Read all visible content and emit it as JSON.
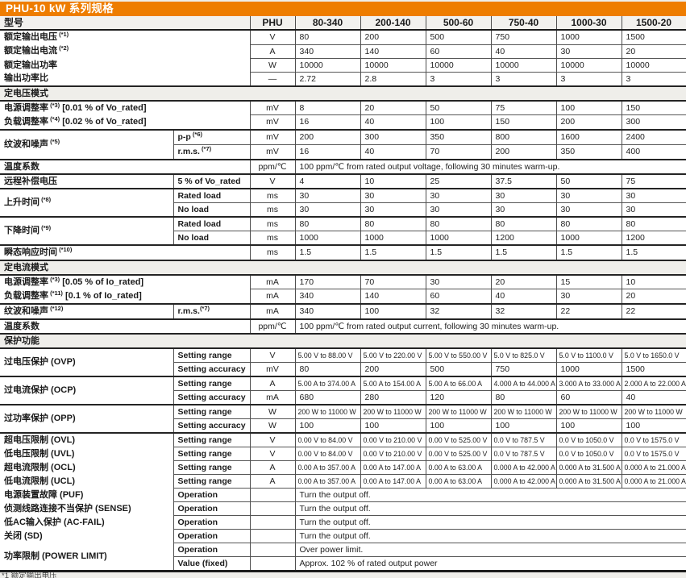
{
  "title": "PHU-10 kW 系列规格",
  "accent_color": "#ee7d00",
  "header": {
    "model_label": "型号",
    "series": "PHU",
    "models": [
      "80-340",
      "200-140",
      "500-60",
      "750-40",
      "1000-30",
      "1500-20"
    ]
  },
  "footnote_fragment": "*1 额定输出电压",
  "rows": [
    {
      "kind": "data",
      "label": "额定输出电压",
      "note": "(*1)",
      "colspan": 2,
      "unit": "V",
      "values": [
        "80",
        "200",
        "500",
        "750",
        "1000",
        "1500"
      ],
      "group": false
    },
    {
      "kind": "data",
      "label": "额定输出电流",
      "note": "(*2)",
      "colspan": 2,
      "unit": "A",
      "values": [
        "340",
        "140",
        "60",
        "40",
        "30",
        "20"
      ],
      "group": false
    },
    {
      "kind": "data",
      "label": "额定输出功率",
      "colspan": 2,
      "unit": "W",
      "values": [
        "10000",
        "10000",
        "10000",
        "10000",
        "10000",
        "10000"
      ],
      "group": false
    },
    {
      "kind": "data",
      "label": "输出功率比",
      "colspan": 2,
      "unit": "—",
      "values": [
        "2.72",
        "2.8",
        "3",
        "3",
        "3",
        "3"
      ],
      "group": false
    },
    {
      "kind": "section",
      "label": "定电压模式"
    },
    {
      "kind": "data",
      "label": "电源调整率",
      "note": "(*3)",
      "suffix": " [0.01 % of Vo_rated]",
      "colspan": 2,
      "unit": "mV",
      "values": [
        "8",
        "20",
        "50",
        "75",
        "100",
        "150"
      ],
      "group": false
    },
    {
      "kind": "data",
      "label": "负载调整率",
      "note": "(*4)",
      "suffix": " [0.02 % of Vo_rated]",
      "colspan": 2,
      "unit": "mV",
      "values": [
        "16",
        "40",
        "100",
        "150",
        "200",
        "300"
      ],
      "group": false
    },
    {
      "kind": "data",
      "label": "纹波和噪声",
      "note": "(*5)",
      "rowspan": 2,
      "sub": "p-p",
      "subNote": " (*6)",
      "unit": "mV",
      "values": [
        "200",
        "300",
        "350",
        "800",
        "1600",
        "2400"
      ],
      "group": true
    },
    {
      "kind": "data",
      "label": null,
      "sub": "r.m.s.",
      "subNote": " (*7)",
      "unit": "mV",
      "values": [
        "16",
        "40",
        "70",
        "200",
        "350",
        "400"
      ],
      "group": false
    },
    {
      "kind": "data",
      "label": "温度系数",
      "colspan": 2,
      "unit": "ppm/℃",
      "span": "100 ppm/℃ from rated output voltage, following 30 minutes warm-up.",
      "group": true
    },
    {
      "kind": "data",
      "label": "远程补偿电压",
      "sub": "5 % of Vo_rated",
      "unit": "V",
      "values": [
        "4",
        "10",
        "25",
        "37.5",
        "50",
        "75"
      ],
      "group": true
    },
    {
      "kind": "data",
      "label": "上升时间",
      "note": "(*8)",
      "rowspan": 2,
      "sub": "Rated load",
      "unit": "ms",
      "values": [
        "30",
        "30",
        "30",
        "30",
        "30",
        "30"
      ],
      "group": true
    },
    {
      "kind": "data",
      "label": null,
      "sub": "No load",
      "unit": "ms",
      "values": [
        "30",
        "30",
        "30",
        "30",
        "30",
        "30"
      ],
      "group": false
    },
    {
      "kind": "data",
      "label": "下降时间",
      "note": "(*9)",
      "rowspan": 2,
      "sub": "Rated load",
      "unit": "ms",
      "values": [
        "80",
        "80",
        "80",
        "80",
        "80",
        "80"
      ],
      "group": true
    },
    {
      "kind": "data",
      "label": null,
      "sub": "No load",
      "unit": "ms",
      "values": [
        "1000",
        "1000",
        "1000",
        "1200",
        "1000",
        "1200"
      ],
      "group": false
    },
    {
      "kind": "data",
      "label": "瞬态响应时间",
      "note": "(*10)",
      "colspan": 2,
      "unit": "ms",
      "values": [
        "1.5",
        "1.5",
        "1.5",
        "1.5",
        "1.5",
        "1.5"
      ],
      "group": true
    },
    {
      "kind": "section",
      "label": "定电流模式"
    },
    {
      "kind": "data",
      "label": "电源调整率",
      "note": "(*3)",
      "suffix": " [0.05 % of Io_rated]",
      "colspan": 2,
      "unit": "mA",
      "values": [
        "170",
        "70",
        "30",
        "20",
        "15",
        "10"
      ],
      "group": false
    },
    {
      "kind": "data",
      "label": "负载调整率",
      "note": "(*11)",
      "suffix": " [0.1 % of Io_rated]",
      "colspan": 2,
      "unit": "mA",
      "values": [
        "340",
        "140",
        "60",
        "40",
        "30",
        "20"
      ],
      "group": false
    },
    {
      "kind": "data",
      "label": "纹波和噪声",
      "note": "(*12)",
      "sub": "r.m.s.",
      "subNote": "(*7)",
      "unit": "mA",
      "values": [
        "340",
        "100",
        "32",
        "32",
        "22",
        "22"
      ],
      "group": true
    },
    {
      "kind": "data",
      "label": "温度系数",
      "colspan": 2,
      "unit": "ppm/℃",
      "span": "100 ppm/℃ from rated output current, following 30 minutes warm-up.",
      "group": true
    },
    {
      "kind": "section",
      "label": "保护功能"
    },
    {
      "kind": "data",
      "label": "过电压保护 (OVP)",
      "rowspan": 2,
      "sub": "Setting range",
      "unit": "V",
      "values": [
        "5.00 V to 88.00 V",
        "5.00 V to 220.00 V",
        "5.00 V to 550.00 V",
        "5.0 V to 825.0 V",
        "5.0 V to 1100.0 V",
        "5.0 V to 1650.0 V"
      ],
      "group": false
    },
    {
      "kind": "data",
      "label": null,
      "sub": "Setting accuracy",
      "unit": "mV",
      "values": [
        "80",
        "200",
        "500",
        "750",
        "1000",
        "1500"
      ],
      "group": false
    },
    {
      "kind": "data",
      "label": "过电流保护 (OCP)",
      "rowspan": 2,
      "sub": "Setting range",
      "unit": "A",
      "values": [
        "5.00 A to 374.00 A",
        "5.00 A to 154.00 A",
        "5.00 A to 66.00 A",
        "4.000 A to 44.000 A",
        "3.000 A to 33.000 A",
        "2.000 A to 22.000 A"
      ],
      "group": true
    },
    {
      "kind": "data",
      "label": null,
      "sub": "Setting accuracy",
      "unit": "mA",
      "values": [
        "680",
        "280",
        "120",
        "80",
        "60",
        "40"
      ],
      "group": false
    },
    {
      "kind": "data",
      "label": "过功率保护 (OPP)",
      "rowspan": 2,
      "sub": "Setting range",
      "unit": "W",
      "values": [
        "200 W to 11000 W",
        "200 W to 11000 W",
        "200 W to 11000 W",
        "200 W to 11000 W",
        "200 W to 11000 W",
        "200 W to 11000 W"
      ],
      "group": true
    },
    {
      "kind": "data",
      "label": null,
      "sub": "Setting accuracy",
      "unit": "W",
      "values": [
        "100",
        "100",
        "100",
        "100",
        "100",
        "100"
      ],
      "group": false
    },
    {
      "kind": "data",
      "label": "超电压限制 (OVL)",
      "sub": "Setting range",
      "unit": "V",
      "values": [
        "0.00 V to 84.00 V",
        "0.00 V to 210.00 V",
        "0.00 V to 525.00 V",
        "0.0 V to 787.5 V",
        "0.0 V to 1050.0 V",
        "0.0 V to 1575.0 V"
      ],
      "group": true
    },
    {
      "kind": "data",
      "label": "低电压限制 (UVL)",
      "sub": "Setting range",
      "unit": "V",
      "values": [
        "0.00 V to 84.00 V",
        "0.00 V to 210.00 V",
        "0.00 V to 525.00 V",
        "0.0 V to 787.5 V",
        "0.0 V to 1050.0 V",
        "0.0 V to 1575.0 V"
      ],
      "group": false
    },
    {
      "kind": "data",
      "label": "超电流限制 (OCL)",
      "sub": "Setting range",
      "unit": "A",
      "values": [
        "0.00 A to 357.00 A",
        "0.00 A to 147.00 A",
        "0.00 A to 63.00 A",
        "0.000 A to 42.000 A",
        "0.000 A to 31.500 A",
        "0.000 A to 21.000 A"
      ],
      "group": false
    },
    {
      "kind": "data",
      "label": "低电流限制 (UCL)",
      "sub": "Setting range",
      "unit": "A",
      "values": [
        "0.00 A to 357.00 A",
        "0.00 A to 147.00 A",
        "0.00 A to 63.00 A",
        "0.000 A to 42.000 A",
        "0.000 A to 31.500 A",
        "0.000 A to 21.000 A"
      ],
      "group": false
    },
    {
      "kind": "data",
      "label": "电源装置故障 (PUF)",
      "sub": "Operation",
      "unit": "",
      "span": "Turn the output off.",
      "group": false
    },
    {
      "kind": "data",
      "label": "侦测线路连接不当保护 (SENSE)",
      "sub": "Operation",
      "unit": "",
      "span": "Turn the output off.",
      "group": false
    },
    {
      "kind": "data",
      "label": "低AC输入保护 (AC-FAIL)",
      "sub": "Operation",
      "unit": "",
      "span": "Turn the output off.",
      "group": false
    },
    {
      "kind": "data",
      "label": "关闭 (SD)",
      "sub": "Operation",
      "unit": "",
      "span": "Turn the output off.",
      "group": false
    },
    {
      "kind": "data",
      "label": "功率限制 (POWER LIMIT)",
      "rowspan": 2,
      "sub": "Operation",
      "unit": "",
      "span": "Over power limit.",
      "group": false
    },
    {
      "kind": "data",
      "label": null,
      "sub": "Value (fixed)",
      "unit": "",
      "span": "Approx. 102 % of rated output power",
      "group": false
    }
  ]
}
